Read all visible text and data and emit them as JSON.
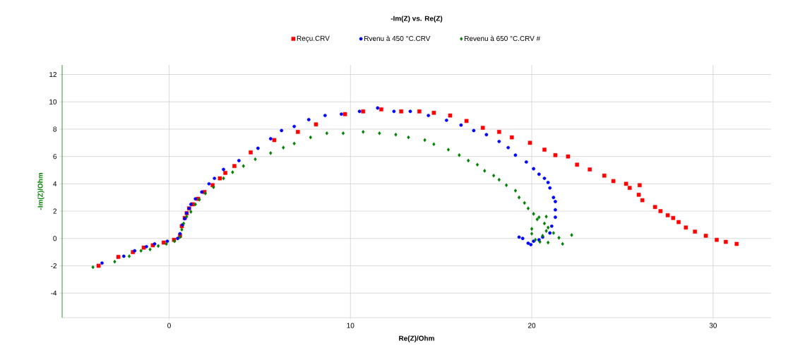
{
  "chart_data": {
    "type": "scatter",
    "title": "-Im(Z) vs. Re(Z)",
    "xlabel": "Re(Z)/Ohm",
    "ylabel": "-Im(Z)/Ohm",
    "xlim": [
      -5.9,
      33.2
    ],
    "ylim": [
      -5.8,
      12.7
    ],
    "xticks": [
      0,
      10,
      20,
      30
    ],
    "yticks": [
      -4,
      -2,
      0,
      2,
      4,
      6,
      8,
      10,
      12
    ],
    "grid": true,
    "legend": "top",
    "series": [
      {
        "name": "Reçu.CRV",
        "color": "#ff0000",
        "marker": "square",
        "x": [
          -3.89,
          -2.8,
          -2.0,
          -1.4,
          -0.9,
          -0.3,
          0.27,
          0.6,
          0.7,
          0.86,
          0.97,
          1.1,
          1.3,
          1.6,
          1.95,
          2.4,
          2.8,
          3.1,
          3.6,
          4.5,
          5.8,
          7.1,
          8.1,
          9.7,
          10.7,
          11.7,
          12.8,
          13.8,
          14.6,
          15.5,
          16.4,
          17.3,
          18.2,
          18.9,
          19.9,
          20.7,
          21.3,
          22.0,
          22.5,
          23.2,
          24.0,
          24.5,
          25.2,
          25.4,
          25.95,
          25.9,
          26.1,
          26.8,
          27.1,
          27.5,
          27.8,
          28.1,
          28.5,
          29.0,
          29.6,
          30.2,
          30.7,
          31.3
        ],
        "values": [
          -2.0,
          -1.35,
          -1.0,
          -0.67,
          -0.5,
          -0.3,
          -0.1,
          0.2,
          0.9,
          1.5,
          1.85,
          2.2,
          2.5,
          2.9,
          3.4,
          3.9,
          4.4,
          4.8,
          5.3,
          6.3,
          7.2,
          7.8,
          8.35,
          9.1,
          9.3,
          9.45,
          9.3,
          9.3,
          9.2,
          9.0,
          8.6,
          8.1,
          7.8,
          7.4,
          7.0,
          6.5,
          6.1,
          6.0,
          5.4,
          5.05,
          4.6,
          4.2,
          4.0,
          3.7,
          3.9,
          3.2,
          2.8,
          2.3,
          2.0,
          1.7,
          1.5,
          1.2,
          0.8,
          0.5,
          0.2,
          -0.1,
          -0.25,
          -0.4
        ]
      },
      {
        "name": "Rvenu à 450 °C.CRV",
        "color": "#0000ff",
        "marker": "circle",
        "x": [
          -3.7,
          -2.5,
          -1.9,
          -1.25,
          -0.8,
          -0.1,
          0.47,
          0.6,
          0.74,
          0.86,
          0.97,
          1.1,
          1.2,
          1.45,
          1.8,
          2.2,
          2.5,
          3.0,
          3.85,
          4.9,
          5.6,
          6.2,
          6.9,
          7.7,
          8.6,
          9.5,
          10.5,
          11.5,
          12.4,
          13.3,
          14.3,
          15.3,
          16.1,
          16.8,
          17.5,
          18.2,
          18.7,
          19.1,
          19.7,
          20.1,
          20.4,
          20.7,
          20.9,
          21.0,
          21.2,
          21.3,
          21.3,
          21.3,
          21.1,
          21.0,
          20.6,
          20.4,
          20.1,
          19.95,
          19.8,
          19.5,
          19.3
        ],
        "values": [
          -1.8,
          -1.3,
          -0.9,
          -0.6,
          -0.4,
          -0.2,
          0,
          0.35,
          1.0,
          1.45,
          1.85,
          2.2,
          2.5,
          2.9,
          3.4,
          4.0,
          4.4,
          5.05,
          5.7,
          6.6,
          7.3,
          7.9,
          8.2,
          8.7,
          9.0,
          9.1,
          9.3,
          9.55,
          9.3,
          9.3,
          9.0,
          8.65,
          8.3,
          7.9,
          7.6,
          7.1,
          6.65,
          6.1,
          5.6,
          5.1,
          4.7,
          4.4,
          4.1,
          3.7,
          3.0,
          2.7,
          2.1,
          1.55,
          0.9,
          0.4,
          0.1,
          -0.1,
          -0.2,
          -0.45,
          -0.35,
          0,
          0.1
        ]
      },
      {
        "name": "Revenu à 650 °C.CRV #",
        "color": "#008000",
        "marker": "diamond",
        "x": [
          -4.2,
          -3.0,
          -2.2,
          -1.55,
          -1.05,
          -0.6,
          -0.15,
          0.3,
          0.6,
          0.7,
          0.8,
          0.97,
          1.2,
          1.45,
          1.67,
          2.0,
          2.45,
          3.0,
          3.5,
          4.1,
          4.75,
          5.6,
          6.3,
          6.9,
          7.8,
          8.7,
          9.6,
          10.7,
          11.6,
          12.5,
          13.2,
          14.1,
          14.6,
          15.4,
          16.0,
          16.5,
          17.0,
          17.4,
          17.9,
          18.2,
          18.6,
          19.1,
          19.3,
          19.6,
          19.8,
          20.1,
          20.4,
          20.3,
          20.8,
          20.7,
          20.9,
          20.8,
          20.6,
          20.45,
          20.9,
          21.5,
          21.7,
          22.2,
          20.0,
          20.0,
          20.2,
          21.2
        ],
        "values": [
          -2.1,
          -1.7,
          -1.3,
          -0.9,
          -0.8,
          -0.55,
          -0.4,
          -0.2,
          0.1,
          0.65,
          1.1,
          1.6,
          1.95,
          2.5,
          2.85,
          3.3,
          3.75,
          4.4,
          4.85,
          5.3,
          5.8,
          6.25,
          6.65,
          6.95,
          7.4,
          7.7,
          7.7,
          7.8,
          7.7,
          7.6,
          7.4,
          7.2,
          6.9,
          6.5,
          6.1,
          5.7,
          5.4,
          4.95,
          4.6,
          4.3,
          3.9,
          3.5,
          3.0,
          2.6,
          2.2,
          1.8,
          1.55,
          1.4,
          1.6,
          1.1,
          0.8,
          0.55,
          0.2,
          -0.25,
          -0.3,
          0.05,
          -0.4,
          0.25,
          0.7,
          0.35,
          -0.1,
          0.4
        ]
      }
    ]
  }
}
